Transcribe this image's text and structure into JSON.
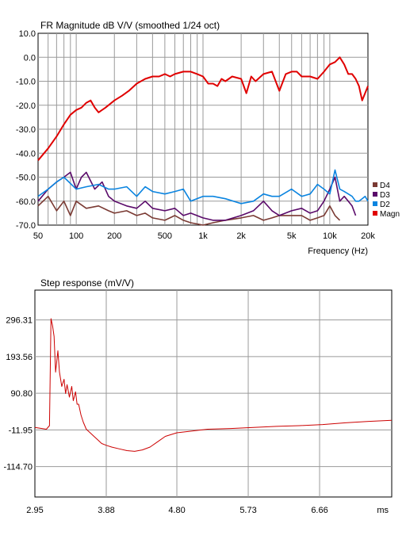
{
  "chart_data": [
    {
      "type": "line",
      "title": "FR Magnitude dB V/V (smoothed 1/24 oct)",
      "xlabel": "Frequency (Hz)",
      "ylabel": "",
      "xscale": "log",
      "xlim": [
        50,
        20000
      ],
      "ylim": [
        -70,
        10
      ],
      "grid": true,
      "legend": "right",
      "x_ticks": [
        {
          "value": 50,
          "label": "50"
        },
        {
          "value": 100,
          "label": "100"
        },
        {
          "value": 200,
          "label": "200"
        },
        {
          "value": 500,
          "label": "500"
        },
        {
          "value": 1000,
          "label": "1k"
        },
        {
          "value": 2000,
          "label": "2k"
        },
        {
          "value": 5000,
          "label": "5k"
        },
        {
          "value": 10000,
          "label": "10k"
        },
        {
          "value": 20000,
          "label": "20k"
        }
      ],
      "y_ticks": [
        {
          "value": 10,
          "label": "10.0"
        },
        {
          "value": 0,
          "label": "0.0"
        },
        {
          "value": -10,
          "label": "-10.0"
        },
        {
          "value": -20,
          "label": "-20.0"
        },
        {
          "value": -30,
          "label": "-30.0"
        },
        {
          "value": -40,
          "label": "-40.0"
        },
        {
          "value": -50,
          "label": "-50.0"
        },
        {
          "value": -60,
          "label": "-60.0"
        },
        {
          "value": -70,
          "label": "-70.0"
        }
      ],
      "series": [
        {
          "name": "Magn",
          "color": "#e00000",
          "x": [
            50,
            60,
            70,
            80,
            90,
            100,
            110,
            120,
            130,
            140,
            150,
            170,
            200,
            230,
            260,
            300,
            350,
            400,
            450,
            500,
            550,
            600,
            700,
            800,
            900,
            1000,
            1100,
            1200,
            1300,
            1400,
            1500,
            1700,
            2000,
            2200,
            2400,
            2600,
            3000,
            3500,
            4000,
            4500,
            5000,
            5500,
            6000,
            7000,
            8000,
            9000,
            10000,
            11000,
            12000,
            13000,
            14000,
            15000,
            16000,
            17000,
            18000,
            19000,
            20000
          ],
          "y": [
            -43,
            -38,
            -33,
            -28,
            -24,
            -22,
            -21,
            -19,
            -18,
            -21,
            -23,
            -21,
            -18,
            -16,
            -14,
            -11,
            -9,
            -8,
            -8,
            -7,
            -8,
            -7,
            -6,
            -6,
            -7,
            -8,
            -11,
            -11,
            -12,
            -9,
            -10,
            -8,
            -9,
            -15,
            -8,
            -10,
            -7,
            -6,
            -14,
            -7,
            -6,
            -6,
            -8,
            -8,
            -9,
            -6,
            -3,
            -2,
            0,
            -3,
            -7,
            -7,
            -9,
            -12,
            -18,
            -15,
            -12
          ]
        },
        {
          "name": "D2",
          "color": "#0a84e0",
          "x": [
            50,
            60,
            70,
            80,
            100,
            120,
            150,
            180,
            200,
            250,
            300,
            350,
            400,
            500,
            600,
            700,
            800,
            1000,
            1200,
            1500,
            2000,
            2500,
            3000,
            3500,
            4000,
            5000,
            6000,
            7000,
            8000,
            9000,
            10000,
            11000,
            12000,
            13000,
            14000,
            15000,
            16000,
            17000,
            18000,
            19000,
            20000
          ],
          "y": [
            -58,
            -55,
            -52,
            -50,
            -55,
            -54,
            -53,
            -55,
            -55,
            -54,
            -58,
            -54,
            -56,
            -57,
            -56,
            -55,
            -60,
            -58,
            -58,
            -59,
            -61,
            -60,
            -57,
            -58,
            -58,
            -55,
            -58,
            -57,
            -53,
            -55,
            -57,
            -47,
            -55,
            -56,
            -57,
            -58,
            -60,
            -60,
            -59,
            -58,
            -60
          ]
        },
        {
          "name": "D3",
          "color": "#5a0a6a",
          "x": [
            50,
            60,
            70,
            80,
            90,
            100,
            110,
            120,
            140,
            160,
            180,
            200,
            250,
            300,
            350,
            400,
            500,
            600,
            700,
            800,
            1000,
            1200,
            1500,
            2000,
            2500,
            3000,
            3500,
            4000,
            5000,
            6000,
            7000,
            8000,
            9000,
            10000,
            11000,
            12000,
            13000,
            14000,
            15000,
            16000
          ],
          "y": [
            -60,
            -55,
            -52,
            -50,
            -48,
            -55,
            -50,
            -48,
            -55,
            -52,
            -58,
            -60,
            -62,
            -63,
            -60,
            -63,
            -64,
            -63,
            -66,
            -65,
            -67,
            -68,
            -68,
            -66,
            -64,
            -60,
            -64,
            -66,
            -64,
            -63,
            -65,
            -64,
            -60,
            -55,
            -50,
            -60,
            -58,
            -60,
            -62,
            -66
          ]
        },
        {
          "name": "D4",
          "color": "#7a3a33",
          "x": [
            50,
            60,
            70,
            80,
            90,
            100,
            120,
            150,
            180,
            200,
            250,
            300,
            350,
            400,
            500,
            600,
            700,
            800,
            1000,
            1200,
            1500,
            2000,
            2500,
            3000,
            3500,
            4000,
            5000,
            6000,
            7000,
            8000,
            9000,
            10000,
            11000,
            12000
          ],
          "y": [
            -62,
            -58,
            -64,
            -60,
            -66,
            -60,
            -63,
            -62,
            -64,
            -65,
            -64,
            -66,
            -65,
            -67,
            -68,
            -66,
            -68,
            -69,
            -70,
            -69,
            -68,
            -67,
            -66,
            -68,
            -67,
            -66,
            -66,
            -66,
            -68,
            -67,
            -66,
            -62,
            -66,
            -68
          ]
        }
      ]
    },
    {
      "type": "line",
      "title": "Step response (mV/V)",
      "xlabel": "ms",
      "ylabel": "",
      "xlim": [
        2.95,
        7.6
      ],
      "ylim": [
        -200,
        380
      ],
      "grid": true,
      "x_ticks": [
        {
          "value": 2.95,
          "label": "2.95"
        },
        {
          "value": 3.88,
          "label": "3.88"
        },
        {
          "value": 4.8,
          "label": "4.80"
        },
        {
          "value": 5.73,
          "label": "5.73"
        },
        {
          "value": 6.66,
          "label": "6.66"
        }
      ],
      "y_ticks": [
        {
          "value": 296.31,
          "label": "296.31"
        },
        {
          "value": 193.56,
          "label": "193.56"
        },
        {
          "value": 90.8,
          "label": "90.80"
        },
        {
          "value": -11.95,
          "label": "-11.95"
        },
        {
          "value": -114.7,
          "label": "-114.70"
        }
      ],
      "series": [
        {
          "name": "",
          "color": "#cc0000",
          "x": [
            2.95,
            3.1,
            3.14,
            3.16,
            3.18,
            3.2,
            3.22,
            3.25,
            3.27,
            3.3,
            3.33,
            3.35,
            3.37,
            3.4,
            3.43,
            3.45,
            3.48,
            3.5,
            3.52,
            3.55,
            3.58,
            3.62,
            3.67,
            3.72,
            3.77,
            3.82,
            3.88,
            3.95,
            4.05,
            4.15,
            4.25,
            4.35,
            4.45,
            4.55,
            4.65,
            4.8,
            5.0,
            5.2,
            5.5,
            5.8,
            6.1,
            6.4,
            6.7,
            7.0,
            7.3,
            7.6
          ],
          "y": [
            -5,
            -10,
            0,
            300,
            280,
            250,
            150,
            210,
            150,
            110,
            130,
            90,
            115,
            80,
            110,
            70,
            95,
            60,
            60,
            30,
            10,
            -10,
            -20,
            -30,
            -40,
            -50,
            -55,
            -60,
            -65,
            -70,
            -72,
            -68,
            -60,
            -45,
            -30,
            -20,
            -15,
            -10,
            -8,
            -5,
            -2,
            0,
            3,
            8,
            12,
            15
          ]
        }
      ]
    }
  ]
}
